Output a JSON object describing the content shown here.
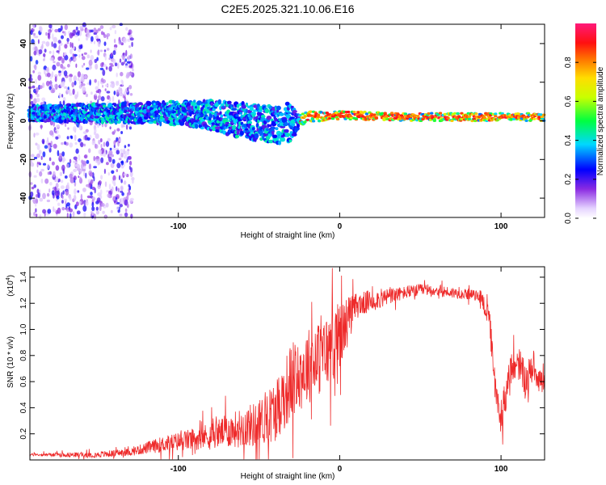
{
  "figure_title": "C2E5.2025.321.10.06.E16",
  "colors": {
    "snr_line": "#ee2a2a",
    "axis": "#000000"
  },
  "chart_data": [
    {
      "type": "heatmap",
      "xlabel": "Height of straight line (km)",
      "ylabel": "Frequency (Hz)",
      "xlim": [
        -192,
        127
      ],
      "ylim": [
        -50,
        50
      ],
      "xticks": [
        -100,
        0,
        100
      ],
      "yticks": [
        -40,
        -20,
        0,
        20,
        40
      ],
      "xtick_labels": [
        "-100",
        "0",
        "100"
      ],
      "ytick_labels": [
        "-40",
        "-20",
        "0",
        "20",
        "40"
      ],
      "colorbar": {
        "label": "Normalized spectral amplitude",
        "range": [
          0,
          1
        ],
        "ticks": [
          0.0,
          0.2,
          0.4,
          0.6,
          0.8
        ],
        "tick_labels": [
          "0.0",
          "0.2",
          "0.4",
          "0.6",
          "0.8"
        ]
      },
      "features": {
        "noise_region_x": [
          -192,
          -128
        ],
        "band_center_hz": [
          [
            -190,
            4
          ],
          [
            -160,
            4
          ],
          [
            -130,
            4
          ],
          [
            -100,
            4
          ],
          [
            -80,
            3
          ],
          [
            -60,
            0
          ],
          [
            -40,
            -2
          ],
          [
            -25,
            0
          ],
          [
            -20,
            2
          ],
          [
            0,
            3
          ],
          [
            40,
            2
          ],
          [
            80,
            2
          ],
          [
            100,
            2
          ],
          [
            127,
            2
          ]
        ],
        "band_halfwidth_hz": [
          [
            -190,
            4
          ],
          [
            -130,
            5
          ],
          [
            -100,
            6
          ],
          [
            -60,
            9
          ],
          [
            -30,
            10
          ],
          [
            -25,
            3
          ],
          [
            0,
            2
          ],
          [
            127,
            2
          ]
        ]
      }
    },
    {
      "type": "line",
      "xlabel": "Height of straight line (km)",
      "ylabel": "SNR (10 * v/v)",
      "yscale_label": "(x10",
      "yscale_exponent": "4",
      "xlim": [
        -192,
        127
      ],
      "ylim": [
        0,
        1.48
      ],
      "xticks": [
        -100,
        0,
        100
      ],
      "xtick_labels": [
        "-100",
        "0",
        "100"
      ],
      "yticks": [
        0.2,
        0.4,
        0.6,
        0.8,
        1.0,
        1.2,
        1.4
      ],
      "ytick_labels": [
        "0.2",
        "0.4",
        "0.6",
        "0.8",
        "1.0",
        "1.2",
        "1.4"
      ],
      "series": [
        {
          "name": "SNR",
          "envelope": [
            [
              -192,
              0.04
            ],
            [
              -150,
              0.04
            ],
            [
              -130,
              0.06
            ],
            [
              -110,
              0.12
            ],
            [
              -90,
              0.16
            ],
            [
              -70,
              0.22
            ],
            [
              -50,
              0.28
            ],
            [
              -40,
              0.38
            ],
            [
              -30,
              0.6
            ],
            [
              -20,
              0.72
            ],
            [
              -10,
              0.8
            ],
            [
              0,
              0.95
            ],
            [
              10,
              1.18
            ],
            [
              20,
              1.22
            ],
            [
              30,
              1.25
            ],
            [
              40,
              1.28
            ],
            [
              50,
              1.3
            ],
            [
              60,
              1.3
            ],
            [
              70,
              1.28
            ],
            [
              80,
              1.27
            ],
            [
              88,
              1.25
            ],
            [
              93,
              1.05
            ],
            [
              97,
              0.45
            ],
            [
              100,
              0.35
            ],
            [
              105,
              0.62
            ],
            [
              110,
              0.78
            ],
            [
              115,
              0.6
            ],
            [
              120,
              0.72
            ],
            [
              127,
              0.55
            ]
          ],
          "noise_amplitude": [
            [
              -192,
              0.01
            ],
            [
              -130,
              0.03
            ],
            [
              -110,
              0.06
            ],
            [
              -80,
              0.1
            ],
            [
              -50,
              0.18
            ],
            [
              -30,
              0.3
            ],
            [
              0,
              0.28
            ],
            [
              10,
              0.1
            ],
            [
              40,
              0.05
            ],
            [
              85,
              0.04
            ],
            [
              95,
              0.12
            ],
            [
              110,
              0.15
            ],
            [
              127,
              0.1
            ]
          ]
        }
      ]
    }
  ]
}
